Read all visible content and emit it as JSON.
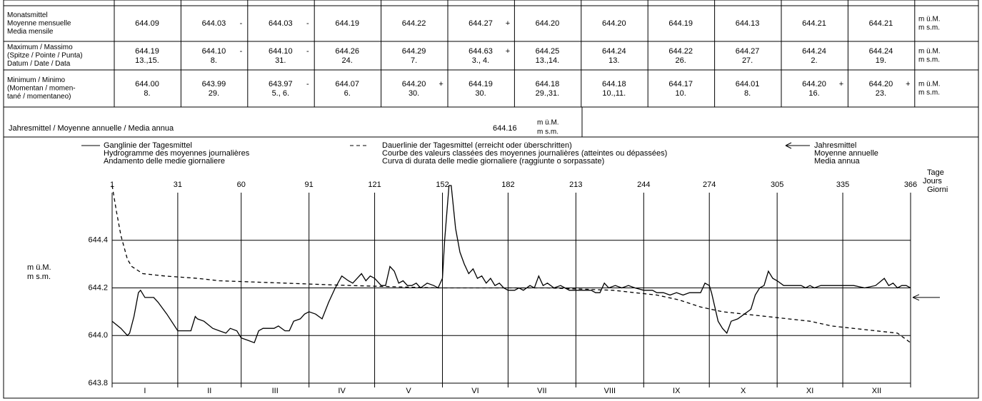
{
  "table": {
    "rows": [
      {
        "label": [
          "Monatsmittel",
          "Moyenne mensuelle",
          "Media mensile"
        ],
        "cells": [
          {
            "value": "644.09"
          },
          {
            "value": "644.03",
            "flag": "-"
          },
          {
            "value": "644.03",
            "flag": "-"
          },
          {
            "value": "644.19"
          },
          {
            "value": "644.22"
          },
          {
            "value": "644.27",
            "flag": "+"
          },
          {
            "value": "644.20"
          },
          {
            "value": "644.20"
          },
          {
            "value": "644.19"
          },
          {
            "value": "644.13"
          },
          {
            "value": "644.21"
          },
          {
            "value": "644.21"
          }
        ],
        "unit": [
          "m ü.M.",
          "m s.m."
        ]
      },
      {
        "label": [
          "Maximum / Massimo",
          "(Spitze / Pointe / Punta)",
          "Datum / Date / Data"
        ],
        "cells": [
          {
            "value": "644.19",
            "date": "13.,15."
          },
          {
            "value": "644.10",
            "flag": "-",
            "date": "8."
          },
          {
            "value": "644.10",
            "flag": "-",
            "date": "31."
          },
          {
            "value": "644.26",
            "date": "24."
          },
          {
            "value": "644.29",
            "date": "7."
          },
          {
            "value": "644.63",
            "flag": "+",
            "date": "3., 4."
          },
          {
            "value": "644.25",
            "date": "13.,14."
          },
          {
            "value": "644.24",
            "date": "13."
          },
          {
            "value": "644.22",
            "date": "26."
          },
          {
            "value": "644.27",
            "date": "27."
          },
          {
            "value": "644.24",
            "date": "2."
          },
          {
            "value": "644.24",
            "date": "19."
          }
        ],
        "unit": [
          "m ü.M.",
          "m s.m."
        ]
      },
      {
        "label": [
          "Minimum / Minimo",
          "(Momentan / momen-",
          "tané / momentaneo)"
        ],
        "cells": [
          {
            "value": "644.00",
            "date": "8."
          },
          {
            "value": "643.99",
            "date": "29."
          },
          {
            "value": "643.97",
            "flag": "-",
            "date": "5., 6."
          },
          {
            "value": "644.07",
            "date": "6."
          },
          {
            "value": "644.20",
            "flag": "+",
            "date": "30."
          },
          {
            "value": "644.19",
            "date": "30."
          },
          {
            "value": "644.18",
            "date": "29.,31."
          },
          {
            "value": "644.18",
            "date": "10.,11."
          },
          {
            "value": "644.17",
            "date": "10."
          },
          {
            "value": "644.01",
            "date": "8."
          },
          {
            "value": "644.20",
            "flag": "+",
            "date": "16."
          },
          {
            "value": "644.20",
            "flag": "+",
            "date": "23."
          }
        ],
        "unit": [
          "m ü.M.",
          "m s.m."
        ]
      }
    ],
    "annual": {
      "label": "Jahresmittel / Moyenne annuelle / Media annua",
      "value": "644.16",
      "unit": [
        "m ü.M.",
        "m s.m."
      ]
    }
  },
  "chart_data": {
    "type": "line",
    "y_label": [
      "m ü.M.",
      "m s.m."
    ],
    "x_label": [
      "Tage",
      "Jours",
      "Giorni"
    ],
    "xlim": [
      1,
      366
    ],
    "xticks": [
      1,
      31,
      60,
      91,
      121,
      152,
      182,
      213,
      244,
      274,
      305,
      335,
      366
    ],
    "ylim": [
      643.8,
      644.6
    ],
    "yticks": [
      643.8,
      {
        "value": 644,
        "label": "644.0"
      },
      644.2,
      644.4
    ],
    "month_labels": [
      "I",
      "II",
      "III",
      "IV",
      "V",
      "VI",
      "VII",
      "VIII",
      "IX",
      "X",
      "XI",
      "XII"
    ],
    "annual_mean": {
      "name": [
        "Jahresmittel",
        "Moyenne annuelle",
        "Media annua"
      ],
      "value": 644.16
    },
    "series": [
      {
        "name": [
          "Ganglinie der Tagesmittel",
          "Hydrogramme des moyennes journalières",
          "Andamento delle medie giornaliere"
        ],
        "style": "solid",
        "color": "#000000",
        "x": [
          1,
          5,
          8,
          9,
          11,
          13,
          14,
          16,
          20,
          22,
          26,
          31,
          37,
          39,
          40,
          43,
          47,
          50,
          53,
          55,
          58,
          60,
          63,
          66,
          68,
          70,
          75,
          77,
          80,
          82,
          84,
          87,
          89,
          91,
          94,
          97,
          100,
          103,
          106,
          109,
          111,
          113,
          115,
          117,
          119,
          121,
          124,
          126,
          128,
          130,
          132,
          134,
          136,
          138,
          140,
          142,
          145,
          148,
          150,
          152,
          153,
          155,
          156,
          158,
          160,
          162,
          164,
          166,
          168,
          170,
          172,
          174,
          176,
          178,
          180,
          182,
          185,
          187,
          189,
          192,
          194,
          196,
          198,
          200,
          203,
          206,
          208,
          210,
          213,
          216,
          220,
          222,
          224,
          226,
          228,
          231,
          234,
          237,
          240,
          244,
          248,
          250,
          253,
          256,
          259,
          262,
          265,
          270,
          272,
          274,
          275,
          278,
          280,
          282,
          284,
          287,
          290,
          293,
          295,
          297,
          299,
          301,
          303,
          305,
          308,
          312,
          316,
          318,
          320,
          322,
          325,
          330,
          340,
          345,
          350,
          354,
          356,
          358,
          360,
          362,
          364,
          366
        ],
        "values": [
          644.06,
          644.03,
          644.0,
          644.01,
          644.08,
          644.18,
          644.19,
          644.16,
          644.16,
          644.14,
          644.09,
          644.02,
          644.02,
          644.08,
          644.07,
          644.06,
          644.03,
          644.02,
          644.01,
          644.03,
          644.02,
          643.99,
          643.98,
          643.97,
          644.02,
          644.03,
          644.03,
          644.04,
          644.02,
          644.02,
          644.06,
          644.07,
          644.09,
          644.1,
          644.09,
          644.07,
          644.14,
          644.2,
          644.25,
          644.23,
          644.22,
          644.24,
          644.26,
          644.23,
          644.25,
          644.24,
          644.21,
          644.21,
          644.29,
          644.27,
          644.22,
          644.23,
          644.21,
          644.21,
          644.22,
          644.2,
          644.22,
          644.21,
          644.2,
          644.24,
          644.4,
          644.63,
          644.63,
          644.45,
          644.35,
          644.3,
          644.26,
          644.28,
          644.24,
          644.25,
          644.22,
          644.24,
          644.21,
          644.22,
          644.2,
          644.19,
          644.19,
          644.2,
          644.19,
          644.21,
          644.2,
          644.25,
          644.21,
          644.22,
          644.2,
          644.21,
          644.2,
          644.19,
          644.19,
          644.19,
          644.19,
          644.18,
          644.18,
          644.22,
          644.2,
          644.21,
          644.2,
          644.21,
          644.2,
          644.19,
          644.19,
          644.18,
          644.18,
          644.17,
          644.18,
          644.17,
          644.18,
          644.18,
          644.22,
          644.21,
          644.18,
          644.06,
          644.03,
          644.01,
          644.06,
          644.07,
          644.09,
          644.11,
          644.17,
          644.2,
          644.21,
          644.27,
          644.24,
          644.23,
          644.21,
          644.21,
          644.21,
          644.2,
          644.21,
          644.2,
          644.21,
          644.21,
          644.21,
          644.2,
          644.21,
          644.24,
          644.21,
          644.22,
          644.2,
          644.21,
          644.21,
          644.2
        ]
      },
      {
        "name": [
          "Dauerlinie der Tagesmittel (erreicht oder überschritten)",
          "Courbe des valeurs classées des moyennes journalières (atteintes ou dépassées)",
          "Curva di durata delle medie giornaliere (raggiunte o sorpassate)"
        ],
        "style": "dashed",
        "color": "#000000",
        "x": [
          1,
          3,
          5,
          8,
          10,
          15,
          25,
          40,
          50,
          80,
          110,
          150,
          200,
          230,
          240,
          250,
          260,
          270,
          280,
          300,
          320,
          330,
          350,
          360,
          366
        ],
        "values": [
          644.63,
          644.52,
          644.42,
          644.32,
          644.29,
          644.26,
          644.25,
          644.24,
          644.23,
          644.22,
          644.21,
          644.2,
          644.2,
          644.19,
          644.18,
          644.17,
          644.15,
          644.12,
          644.1,
          644.08,
          644.06,
          644.04,
          644.02,
          644.01,
          643.97
        ]
      }
    ]
  }
}
